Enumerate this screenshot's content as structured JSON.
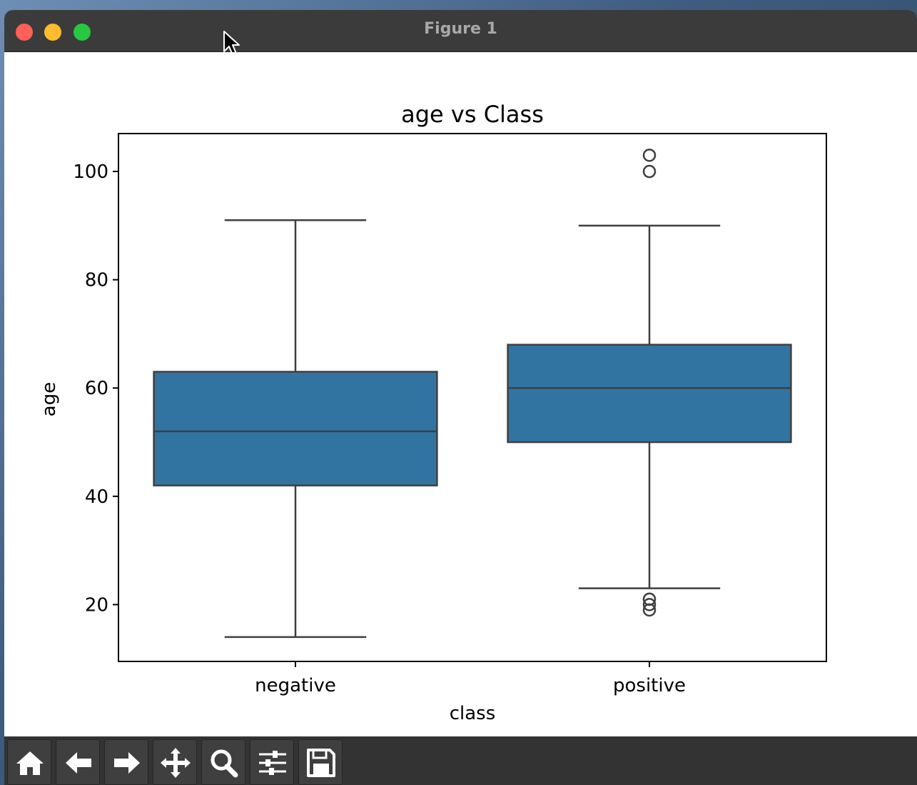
{
  "window": {
    "title": "Figure 1"
  },
  "toolbar": {
    "buttons": [
      {
        "icon": "home-icon"
      },
      {
        "icon": "back-arrow-icon"
      },
      {
        "icon": "forward-arrow-icon"
      },
      {
        "icon": "pan-icon"
      },
      {
        "icon": "zoom-icon"
      },
      {
        "icon": "configure-subplots-icon"
      },
      {
        "icon": "save-icon"
      }
    ]
  },
  "chart_data": {
    "type": "box",
    "title": "age vs Class",
    "xlabel": "class",
    "ylabel": "age",
    "categories": [
      "negative",
      "positive"
    ],
    "ylim": [
      9.5,
      107
    ],
    "yticks": [
      20,
      40,
      60,
      80,
      100
    ],
    "grid": false,
    "box_color": "#3274a1",
    "line_color": "#3f3f3f",
    "boxes": [
      {
        "category": "negative",
        "whisker_low": 14,
        "q1": 42,
        "median": 52,
        "q3": 63,
        "whisker_high": 91,
        "outliers": []
      },
      {
        "category": "positive",
        "whisker_low": 23,
        "q1": 50,
        "median": 60,
        "q3": 68,
        "whisker_high": 90,
        "outliers": [
          19,
          20,
          21,
          100,
          103
        ]
      }
    ]
  }
}
